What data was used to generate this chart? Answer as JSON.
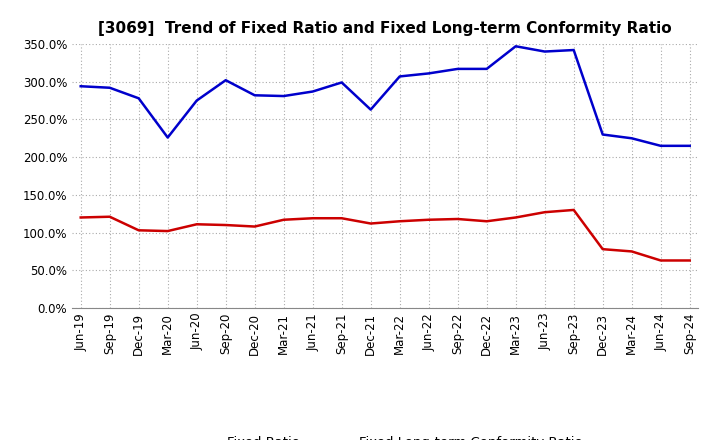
{
  "title": "[3069]  Trend of Fixed Ratio and Fixed Long-term Conformity Ratio",
  "x_labels": [
    "Jun-19",
    "Sep-19",
    "Dec-19",
    "Mar-20",
    "Jun-20",
    "Sep-20",
    "Dec-20",
    "Mar-21",
    "Jun-21",
    "Sep-21",
    "Dec-21",
    "Mar-22",
    "Jun-22",
    "Sep-22",
    "Dec-22",
    "Mar-23",
    "Jun-23",
    "Sep-23",
    "Dec-23",
    "Mar-24",
    "Jun-24",
    "Sep-24"
  ],
  "fixed_ratio": [
    294,
    292,
    278,
    226,
    275,
    302,
    282,
    281,
    287,
    299,
    263,
    307,
    311,
    317,
    317,
    347,
    340,
    342,
    230,
    225,
    215,
    215
  ],
  "fixed_lt_ratio": [
    120,
    121,
    103,
    102,
    111,
    110,
    108,
    117,
    119,
    119,
    112,
    115,
    117,
    118,
    115,
    120,
    127,
    130,
    78,
    75,
    63,
    63
  ],
  "ylim": [
    0,
    350
  ],
  "yticks": [
    0,
    50,
    100,
    150,
    200,
    250,
    300,
    350
  ],
  "fixed_ratio_color": "#0000cc",
  "fixed_lt_ratio_color": "#cc0000",
  "background_color": "#ffffff",
  "grid_color": "#aaaaaa",
  "legend_fixed": "Fixed Ratio",
  "legend_lt": "Fixed Long-term Conformity Ratio",
  "title_fontsize": 11,
  "axis_fontsize": 8.5,
  "legend_fontsize": 9.5
}
